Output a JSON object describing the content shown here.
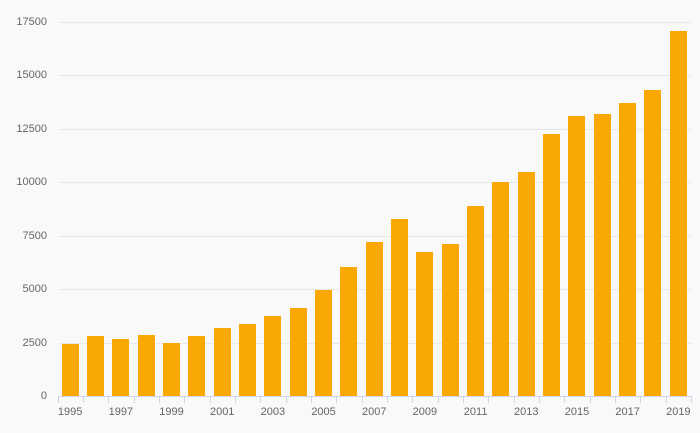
{
  "chart": {
    "background_color": "#f9f9f9",
    "bar_color": "#f9a806",
    "grid_color": "#e8e8e8",
    "axis_color": "#ccd6eb",
    "label_color": "#666666"
  },
  "chart_data": {
    "type": "bar",
    "title": "",
    "xlabel": "",
    "ylabel": "",
    "categories": [
      "1995",
      "1996",
      "1997",
      "1998",
      "1999",
      "2000",
      "2001",
      "2002",
      "2003",
      "2004",
      "2005",
      "2006",
      "2007",
      "2008",
      "2009",
      "2010",
      "2011",
      "2012",
      "2013",
      "2014",
      "2015",
      "2016",
      "2017",
      "2018",
      "2019"
    ],
    "values": [
      2450,
      2800,
      2650,
      2850,
      2500,
      2800,
      3200,
      3350,
      3750,
      4100,
      4950,
      6050,
      7200,
      8300,
      6750,
      7100,
      8900,
      10000,
      10500,
      12250,
      13100,
      13200,
      13700,
      14300,
      17100
    ],
    "ylim": [
      0,
      17500
    ],
    "ytick_interval": 2500,
    "ytick_labels": [
      "0",
      "2500",
      "5000",
      "7500",
      "10000",
      "12500",
      "15000",
      "17500"
    ],
    "xtick_labels": [
      "1995",
      "1997",
      "1999",
      "2001",
      "2003",
      "2005",
      "2007",
      "2009",
      "2011",
      "2013",
      "2015",
      "2017",
      "2019"
    ],
    "xtick_label_every": 2,
    "grid": true,
    "legend": false
  }
}
